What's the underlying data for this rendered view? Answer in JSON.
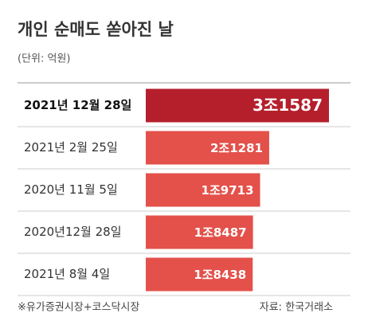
{
  "chart_data": {
    "type": "bar",
    "orientation": "horizontal",
    "title": "개인 순매도 쏟아진 날",
    "subtitle": "(단위: 억원)",
    "categories": [
      "2021년 12월 28일",
      "2021년 2월 25일",
      "2020년 11월 5일",
      "2020년12월 28일",
      "2021년 8월 4일"
    ],
    "values": [
      31587,
      21281,
      19713,
      18487,
      18438
    ],
    "value_labels": [
      "3조1587",
      "2조1281",
      "1조9713",
      "1조8487",
      "1조8438"
    ],
    "colors": [
      "#b51f2c",
      "#e3514a",
      "#e3514a",
      "#e3514a",
      "#e3514a"
    ],
    "note": "※유가증권시장+코스닥시장",
    "source": "자료: 한국거래소"
  }
}
